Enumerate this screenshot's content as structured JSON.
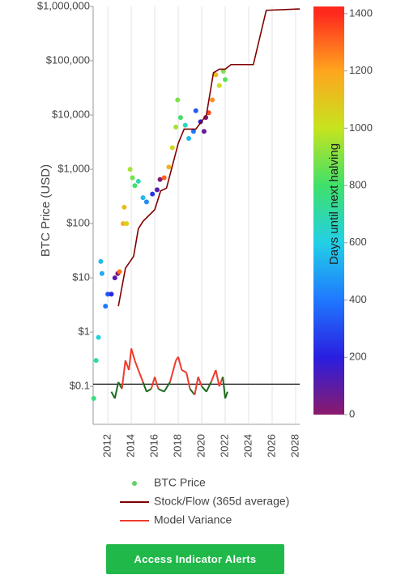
{
  "chart_data": {
    "type": "line",
    "y_label": "BTC Price (USD)",
    "log_y": true,
    "grid_x": true,
    "xlim": [
      2010.75,
      2028.35
    ],
    "xticks": [
      2012,
      2014,
      2016,
      2018,
      2020,
      2022,
      2024,
      2026,
      2028
    ],
    "ylim": [
      0.02,
      1000000
    ],
    "yticks": [
      {
        "value": 0.1,
        "label": "$0.1"
      },
      {
        "value": 1,
        "label": "$1"
      },
      {
        "value": 10,
        "label": "$10"
      },
      {
        "value": 100,
        "label": "$100"
      },
      {
        "value": 1000,
        "label": "$1,000"
      },
      {
        "value": 10000,
        "label": "$10,000"
      },
      {
        "value": 100000,
        "label": "$100,000"
      },
      {
        "value": 1000000,
        "label": "$1,000,000"
      }
    ],
    "series": [
      {
        "name": "BTC Price",
        "type": "scatter",
        "color": "#5fd35f",
        "x": [
          2010.8,
          2011.0,
          2011.2,
          2011.4,
          2011.5,
          2011.8,
          2012.0,
          2012.3,
          2012.6,
          2012.85,
          2013.0,
          2013.3,
          2013.4,
          2013.6,
          2013.9,
          2014.1,
          2014.3,
          2014.6,
          2015.0,
          2015.3,
          2015.8,
          2016.2,
          2016.45,
          2016.8,
          2017.2,
          2017.5,
          2017.8,
          2017.95,
          2018.2,
          2018.6,
          2018.9,
          2019.3,
          2019.5,
          2019.9,
          2020.2,
          2020.35,
          2020.6,
          2020.9,
          2021.2,
          2021.5,
          2021.85,
          2022.0
        ],
        "values": [
          0.06,
          0.3,
          0.8,
          20,
          12,
          3,
          5,
          5,
          10,
          12,
          13,
          100,
          200,
          100,
          1000,
          700,
          500,
          600,
          300,
          250,
          350,
          420,
          650,
          700,
          1100,
          2500,
          6000,
          19000,
          9000,
          6500,
          3700,
          5000,
          12000,
          7500,
          5000,
          9000,
          11000,
          19000,
          55000,
          35000,
          64000,
          45000
        ],
        "days_until_halving": [
          767,
          694,
          620,
          548,
          511,
          402,
          329,
          219,
          110,
          18,
          1277,
          1168,
          1132,
          1058,
          949,
          876,
          803,
          694,
          548,
          438,
          256,
          110,
          18,
          1314,
          1168,
          1058,
          949,
          894,
          803,
          657,
          548,
          402,
          329,
          183,
          73,
          18,
          1351,
          1241,
          1132,
          1022,
          894,
          839
        ]
      },
      {
        "name": "Stock/Flow (365d average)",
        "type": "line",
        "color": "#7f0000",
        "x": [
          2012.9,
          2013.5,
          2014.2,
          2014.6,
          2015.0,
          2016.0,
          2016.5,
          2017.0,
          2018.0,
          2018.5,
          2019.5,
          2020.4,
          2021.0,
          2021.5,
          2022.0,
          2022.5,
          2024.4,
          2025.5,
          2028.35
        ],
        "values": [
          3,
          15,
          25,
          80,
          110,
          180,
          400,
          450,
          3000,
          5500,
          5500,
          10000,
          60000,
          70000,
          70000,
          85000,
          85000,
          850000,
          900000
        ]
      },
      {
        "name": "Model Variance",
        "type": "variance",
        "color": "#ee3b2e",
        "below_color": "#1e6b1e",
        "reference": 0.11,
        "x": [
          2012.3,
          2012.6,
          2012.9,
          2013.2,
          2013.5,
          2013.8,
          2014.0,
          2014.3,
          2014.6,
          2015.0,
          2015.3,
          2015.7,
          2016.0,
          2016.3,
          2016.8,
          2017.3,
          2017.8,
          2018.0,
          2018.3,
          2018.7,
          2019.0,
          2019.4,
          2019.7,
          2020.0,
          2020.4,
          2020.8,
          2021.2,
          2021.5,
          2021.8,
          2022.0,
          2022.2
        ],
        "values": [
          0.08,
          0.06,
          0.12,
          0.09,
          0.3,
          0.2,
          0.5,
          0.3,
          0.2,
          0.12,
          0.08,
          0.09,
          0.15,
          0.09,
          0.08,
          0.12,
          0.3,
          0.35,
          0.2,
          0.18,
          0.09,
          0.07,
          0.15,
          0.1,
          0.08,
          0.12,
          0.2,
          0.1,
          0.15,
          0.06,
          0.08
        ]
      }
    ],
    "colorbar": {
      "title": "Days until next halving",
      "lim": [
        0,
        1425
      ],
      "ticks": [
        0,
        200,
        400,
        600,
        800,
        1000,
        1200,
        1400
      ],
      "colorscale": [
        [
          0,
          "#8b1a6b"
        ],
        [
          200,
          "#2a1ee0"
        ],
        [
          400,
          "#1f78ff"
        ],
        [
          600,
          "#22d0e6"
        ],
        [
          800,
          "#3fe06a"
        ],
        [
          1000,
          "#c6e41e"
        ],
        [
          1200,
          "#ffa51e"
        ],
        [
          1400,
          "#ff2a1e"
        ]
      ]
    }
  },
  "button": {
    "label": "Access Indicator Alerts"
  }
}
